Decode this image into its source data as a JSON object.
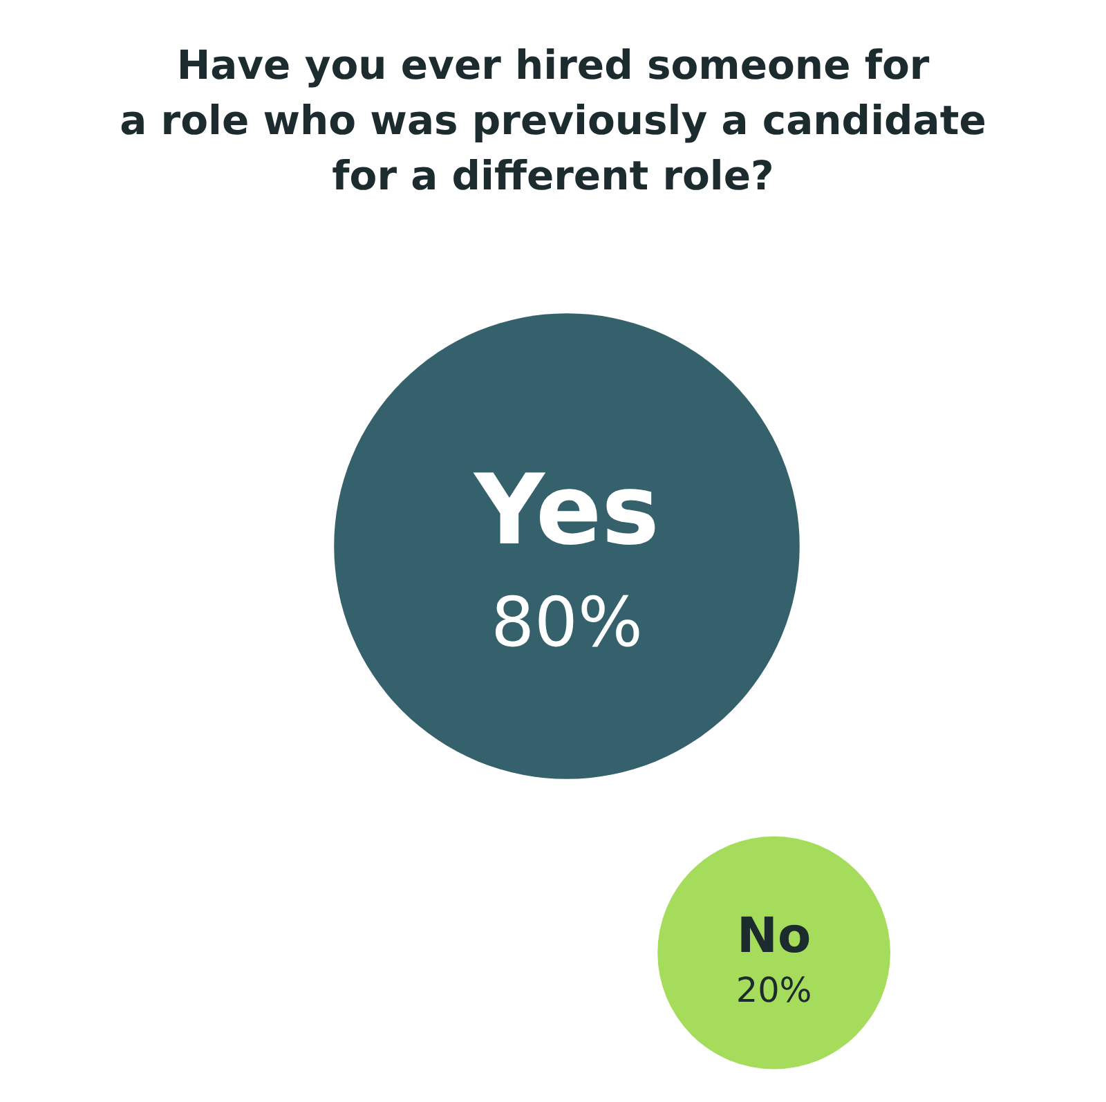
{
  "chart_data": {
    "type": "other",
    "title": "Have you ever hired someone for\na role who was previously a candidate\nfor a different role?",
    "categories": [
      "Yes",
      "No"
    ],
    "values": [
      80,
      20
    ],
    "value_labels": [
      "80%",
      "20%"
    ],
    "colors": [
      "#35616c",
      "#a6dc5c"
    ]
  }
}
